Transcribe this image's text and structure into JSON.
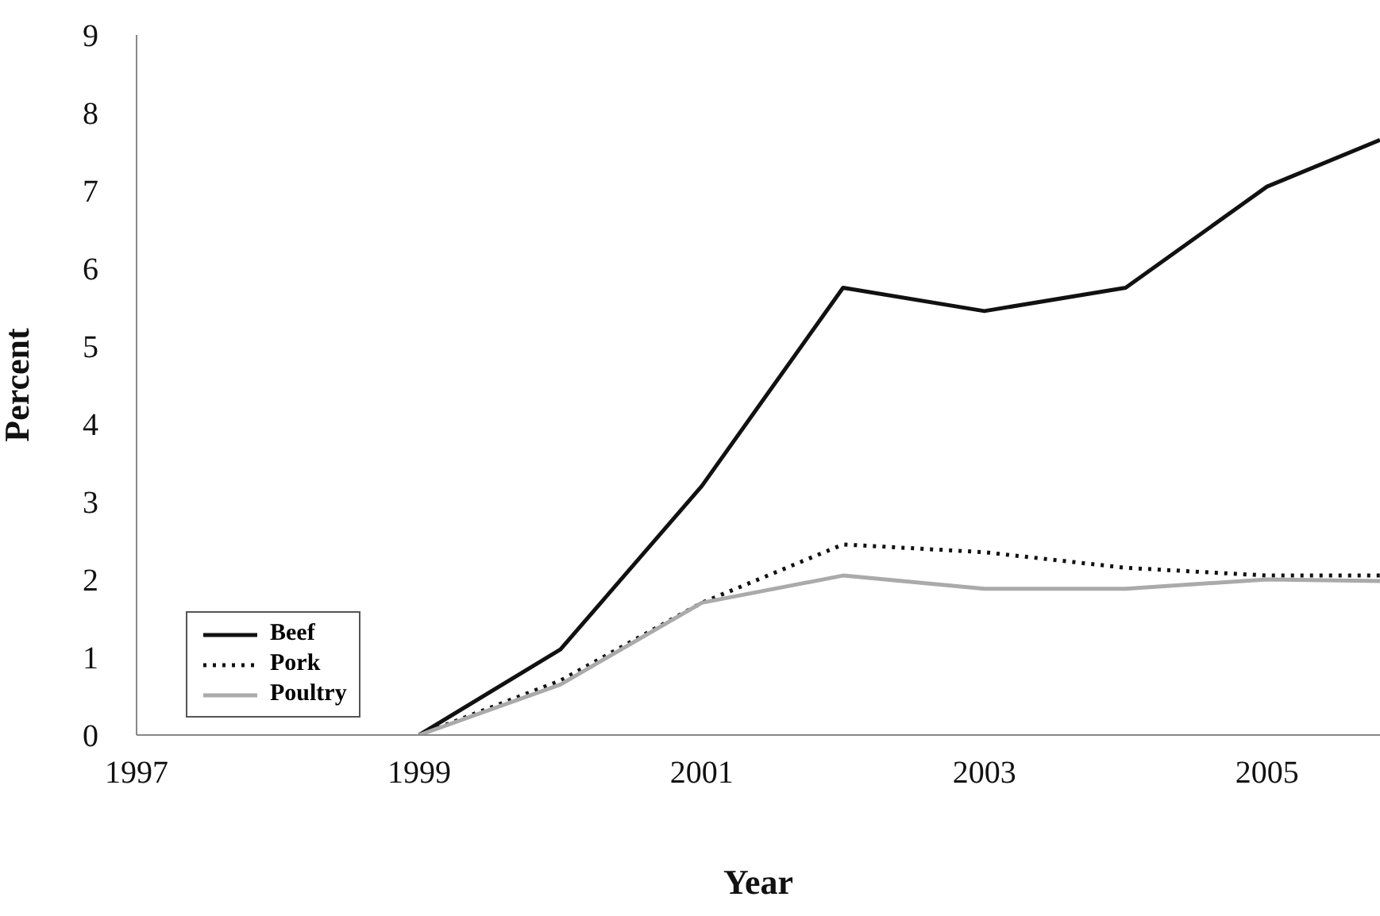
{
  "chart_data": {
    "type": "line",
    "xlabel": "Year",
    "ylabel": "Percent",
    "x": [
      1999,
      2000,
      2001,
      2002,
      2003,
      2004,
      2005,
      2005.8
    ],
    "series": [
      {
        "name": "Beef",
        "color": "#111111",
        "line_style": "solid",
        "values": [
          0,
          1.1,
          3.2,
          5.75,
          5.45,
          5.75,
          7.05,
          7.65
        ]
      },
      {
        "name": "Pork",
        "color": "#111111",
        "line_style": "dotted",
        "values": [
          0,
          0.7,
          1.7,
          2.45,
          2.35,
          2.15,
          2.05,
          2.05
        ]
      },
      {
        "name": "Poultry",
        "color": "#aaaaaa",
        "line_style": "solid",
        "values": [
          0,
          0.65,
          1.7,
          2.05,
          1.88,
          1.88,
          2.0,
          1.98
        ]
      }
    ],
    "xlim": [
      1997,
      2005.8
    ],
    "xticks": [
      1997,
      1999,
      2001,
      2003,
      2005
    ],
    "ylim": [
      0,
      9
    ],
    "yticks": [
      0,
      1,
      2,
      3,
      4,
      5,
      6,
      7,
      8,
      9
    ],
    "grid": false,
    "legend": "bottom left",
    "marker": "none"
  }
}
